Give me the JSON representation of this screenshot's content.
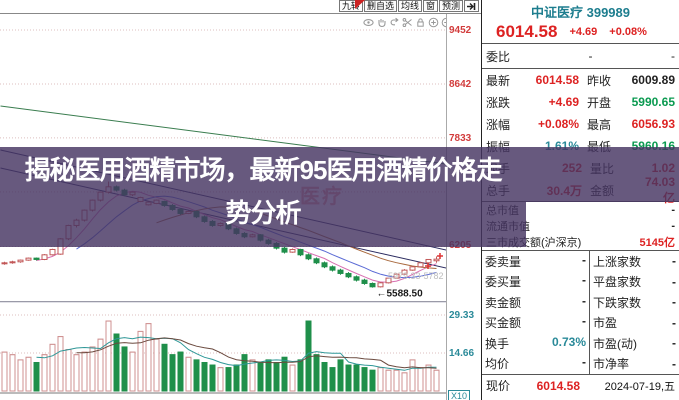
{
  "toolbar": {
    "buttons": [
      "九转",
      "删自选",
      "均线",
      "窗",
      "预测"
    ],
    "icons": [
      "eye-icon",
      "hand-icon",
      "undo-icon",
      "scissors-icon",
      "lock-icon",
      "zoom-in-icon",
      "zoom-out-icon"
    ]
  },
  "banner": {
    "line1": "揭秘医用酒精市场，最新95医用酒精价格走",
    "line2": "势分析"
  },
  "panel": {
    "title": "中证医疗 399989",
    "price": "6014.58",
    "change": "+4.69",
    "change_pct": "+0.08%",
    "weibi": {
      "label": "委比",
      "v1": "-",
      "v2": "-"
    },
    "quote_rows": [
      {
        "l1": "最新",
        "v1": "6014.58",
        "l2": "昨收",
        "v2": "6009.89"
      },
      {
        "l1": "涨跌",
        "v1": "+4.69",
        "l2": "开盘",
        "v2": "5990.65"
      },
      {
        "l1": "涨幅",
        "v1": "+0.08%",
        "l2": "最高",
        "v2": "6056.93"
      },
      {
        "l1": "振幅",
        "v1": "1.61%",
        "l2": "最低",
        "v2": "5960.16"
      },
      {
        "l1": "现手",
        "v1": "252",
        "l2": "量比",
        "v2": "1.02"
      },
      {
        "l1": "总手",
        "v1": "30.4万",
        "l2": "金额",
        "v2": "74.03亿"
      }
    ],
    "mkt_rows": [
      {
        "label": "总市值",
        "value": "-"
      },
      {
        "label": "流通市值",
        "value": "-"
      },
      {
        "label": "三市成交额(沪深京)",
        "value": "5145亿"
      }
    ],
    "pair_rows": [
      {
        "l1": "委卖量",
        "v1": "-",
        "l2": "上涨家数",
        "v2": "-"
      },
      {
        "l1": "委买量",
        "v1": "-",
        "l2": "平盘家数",
        "v2": "-"
      },
      {
        "l1": "卖金额",
        "v1": "-",
        "l2": "下跌家数",
        "v2": "-"
      },
      {
        "l1": "买金额",
        "v1": "-",
        "l2": "市盈",
        "v2": "-"
      },
      {
        "l1": "换手",
        "v1": "0.73%",
        "l2": "市盈(动)",
        "v2": "-"
      },
      {
        "l1": "均价",
        "v1": "-",
        "l2": "市净率",
        "v2": "-"
      }
    ],
    "bottom": {
      "label": "现价",
      "value": "6014.58",
      "date": "2024-07-19,五"
    }
  },
  "colors": {
    "up_red": "#c25858",
    "down_green": "#1f8f4a",
    "accent_red": "#d22222",
    "accent_green": "#0a9a50",
    "accent_teal": "#2a8a99",
    "banner_purple": "#463462"
  },
  "chart_data": {
    "type": "candlestick",
    "y_axis_labels": [
      "9452",
      "8642",
      "7833",
      "6205"
    ],
    "price_gridlines": [
      9452,
      8642,
      7833,
      7023,
      6205
    ],
    "vol_axis_labels": [
      "29.33",
      "14.66"
    ],
    "vol_gridlines": [
      29.33,
      14.66
    ],
    "vol_multiplier": "X10",
    "low_annotation": {
      "text": "←5588.50",
      "index": 46,
      "value": 5588.5
    },
    "faded_annotation": "5979.33-5782",
    "watermark": "医疗",
    "green_line": {
      "from": [
        -0.5,
        8312
      ],
      "to": [
        55.2,
        7442
      ]
    },
    "trendlines": [
      {
        "from": [
          -0.5,
          7652
        ],
        "to": [
          55.2,
          6152
        ]
      },
      {
        "from": [
          -0.5,
          7382
        ],
        "to": [
          55.2,
          5882
        ]
      }
    ],
    "candles": [
      [
        5945,
        5975,
        5930,
        5960
      ],
      [
        5960,
        5990,
        5945,
        5975
      ],
      [
        5975,
        6010,
        5960,
        6000
      ],
      [
        6000,
        6040,
        5990,
        6030
      ],
      [
        6030,
        6040,
        5995,
        6010
      ],
      [
        6010,
        6090,
        6000,
        6080
      ],
      [
        6080,
        6170,
        6070,
        6160
      ],
      [
        6090,
        6330,
        6080,
        6320
      ],
      [
        6320,
        6530,
        6300,
        6520
      ],
      [
        6520,
        6620,
        6490,
        6600
      ],
      [
        6600,
        6760,
        6580,
        6750
      ],
      [
        6750,
        6910,
        6730,
        6900
      ],
      [
        6900,
        7030,
        6880,
        7020
      ],
      [
        7020,
        7180,
        7000,
        7100
      ],
      [
        7100,
        7120,
        7030,
        7050
      ],
      [
        7050,
        7070,
        6960,
        6980
      ],
      [
        6980,
        7030,
        6960,
        7020
      ],
      [
        6880,
        6950,
        6870,
        6940
      ],
      [
        6830,
        6880,
        6820,
        6870
      ],
      [
        6850,
        6910,
        6840,
        6900
      ],
      [
        6880,
        6890,
        6800,
        6820
      ],
      [
        6820,
        6840,
        6740,
        6760
      ],
      [
        6760,
        6780,
        6680,
        6700
      ],
      [
        6700,
        6745,
        6690,
        6730
      ],
      [
        6730,
        6740,
        6630,
        6650
      ],
      [
        6650,
        6670,
        6560,
        6580
      ],
      [
        6580,
        6600,
        6500,
        6520
      ],
      [
        6520,
        6565,
        6505,
        6550
      ],
      [
        6550,
        6560,
        6450,
        6470
      ],
      [
        6470,
        6490,
        6380,
        6400
      ],
      [
        6400,
        6420,
        6330,
        6350
      ],
      [
        6350,
        6395,
        6340,
        6380
      ],
      [
        6380,
        6390,
        6280,
        6300
      ],
      [
        6300,
        6320,
        6230,
        6250
      ],
      [
        6250,
        6270,
        6160,
        6180
      ],
      [
        6180,
        6200,
        6100,
        6120
      ],
      [
        6120,
        6175,
        6110,
        6160
      ],
      [
        6160,
        6170,
        6060,
        6080
      ],
      [
        6080,
        6100,
        6000,
        6020
      ],
      [
        6020,
        6040,
        5940,
        5960
      ],
      [
        5960,
        5980,
        5880,
        5900
      ],
      [
        5900,
        5920,
        5830,
        5850
      ],
      [
        5850,
        5870,
        5780,
        5800
      ],
      [
        5800,
        5820,
        5730,
        5750
      ],
      [
        5750,
        5770,
        5680,
        5700
      ],
      [
        5700,
        5720,
        5630,
        5650
      ],
      [
        5650,
        5665,
        5588.5,
        5600
      ],
      [
        5600,
        5670,
        5590,
        5660
      ],
      [
        5660,
        5735,
        5650,
        5730
      ],
      [
        5730,
        5800,
        5720,
        5790
      ],
      [
        5790,
        5865,
        5780,
        5850
      ],
      [
        5850,
        5910,
        5840,
        5900
      ],
      [
        5900,
        5970,
        5890,
        5960
      ],
      [
        5960,
        6015,
        5950,
        6009.89
      ],
      [
        5990.65,
        6056.93,
        5960.16,
        6014.58
      ]
    ],
    "volumes": [
      15,
      14,
      12,
      13,
      11,
      14,
      18,
      21,
      16,
      14,
      15,
      17,
      20,
      27,
      22,
      17,
      15,
      23,
      26,
      20,
      18,
      14,
      15,
      13,
      12,
      11,
      10,
      9,
      9,
      10,
      14,
      12,
      11,
      12,
      11,
      13,
      10,
      12,
      27,
      14,
      11,
      9,
      12,
      10,
      10,
      9,
      8,
      9,
      8,
      8,
      7,
      12,
      9,
      10,
      8
    ]
  }
}
